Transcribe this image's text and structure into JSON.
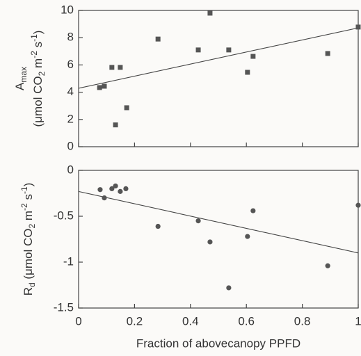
{
  "chart_data": [
    {
      "type": "scatter",
      "marker": "square",
      "color": "#555555",
      "ylabel_lines": [
        [
          {
            "text": "A",
            "shift": "base"
          },
          {
            "text": "max",
            "shift": "sub"
          }
        ],
        [
          {
            "text": "(μmol CO",
            "shift": "base"
          },
          {
            "text": "2",
            "shift": "sub"
          },
          {
            "text": " m",
            "shift": "base"
          },
          {
            "text": "-2",
            "shift": "sup"
          },
          {
            "text": " s",
            "shift": "base"
          },
          {
            "text": "-1",
            "shift": "sup"
          },
          {
            "text": ")",
            "shift": "base"
          }
        ]
      ],
      "x": [
        0.075,
        0.092,
        0.119,
        0.132,
        0.149,
        0.172,
        0.284,
        0.428,
        0.47,
        0.537,
        0.604,
        0.624,
        0.891,
        1.0
      ],
      "values": [
        4.34,
        4.44,
        5.82,
        1.6,
        5.82,
        2.86,
        7.9,
        7.1,
        9.8,
        7.1,
        5.46,
        6.63,
        6.84,
        8.78
      ],
      "fit": {
        "x": [
          0,
          1
        ],
        "values": [
          4.29,
          8.72
        ]
      },
      "xlim": [
        0,
        1
      ],
      "xticks": [
        0,
        0.2,
        0.4,
        0.6,
        0.8,
        1
      ],
      "show_xtick_labels": false,
      "ylim": [
        0,
        10
      ],
      "yticks": [
        0,
        2,
        4,
        6,
        8,
        10
      ]
    },
    {
      "type": "scatter",
      "marker": "circle",
      "color": "#555555",
      "ylabel_lines": [
        [
          {
            "text": "R",
            "shift": "base"
          },
          {
            "text": "d",
            "shift": "sub"
          },
          {
            "text": " (μmol CO",
            "shift": "base"
          },
          {
            "text": "2",
            "shift": "sub"
          },
          {
            "text": " m",
            "shift": "base"
          },
          {
            "text": "-2",
            "shift": "sup"
          },
          {
            "text": " s",
            "shift": "base"
          },
          {
            "text": "-1",
            "shift": "sup"
          },
          {
            "text": ")",
            "shift": "base"
          }
        ]
      ],
      "xlabel": "Fraction of abovecanopy PPFD",
      "x": [
        0.077,
        0.092,
        0.119,
        0.132,
        0.149,
        0.169,
        0.284,
        0.428,
        0.47,
        0.537,
        0.604,
        0.624,
        0.891,
        1.0
      ],
      "values": [
        -0.21,
        -0.3,
        -0.2,
        -0.17,
        -0.23,
        -0.2,
        -0.61,
        -0.55,
        -0.78,
        -1.28,
        -0.72,
        -0.44,
        -1.04,
        -0.38
      ],
      "fit": {
        "x": [
          0,
          1
        ],
        "values": [
          -0.23,
          -0.9
        ]
      },
      "xlim": [
        0,
        1
      ],
      "xticks": [
        0,
        0.2,
        0.4,
        0.6,
        0.8,
        1
      ],
      "show_xtick_labels": true,
      "ylim": [
        -1.5,
        0
      ],
      "yticks": [
        0,
        -0.5,
        -1,
        -1.5
      ]
    }
  ]
}
